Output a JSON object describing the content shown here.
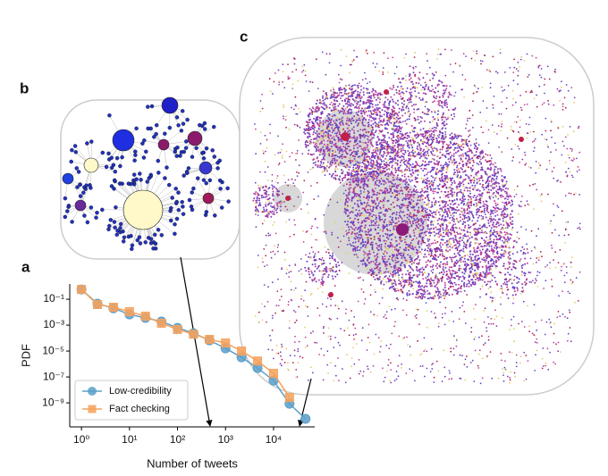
{
  "panels": [
    "a",
    "b",
    "c"
  ],
  "chart_data": {
    "type": "line",
    "xlog": true,
    "ylog": true,
    "xlabel": "Number of tweets",
    "ylabel": "PDF",
    "x": [
      1,
      2.15,
      4.64,
      10,
      21.5,
      46.4,
      100,
      215,
      464,
      1000,
      2150,
      4640,
      10000,
      21500,
      46400
    ],
    "series": [
      {
        "name": "Low-credibility",
        "color": "#5a9fc9",
        "marker": "circle",
        "values": [
          0.57,
          0.046,
          0.02,
          0.0067,
          0.0036,
          0.0019,
          0.00062,
          0.00024,
          6.7e-05,
          1.6e-05,
          3.3e-06,
          4.9e-07,
          5.3e-08,
          8.5e-10,
          5.8e-11
        ]
      },
      {
        "name": "Fact checking",
        "color": "#f5a25d",
        "marker": "square",
        "values": [
          0.57,
          0.039,
          0.024,
          0.011,
          0.0049,
          0.0014,
          0.00046,
          0.0002,
          7.9e-05,
          4.2e-05,
          1e-05,
          1.7e-06,
          1.9e-07,
          2.6e-09,
          null
        ]
      }
    ],
    "xlim": [
      0.57,
      72000
    ],
    "ylim": [
      1.4e-11,
      1.5
    ],
    "xticks": [
      {
        "value": 1,
        "label": "10⁰"
      },
      {
        "value": 10,
        "label": "10¹"
      },
      {
        "value": 100,
        "label": "10²"
      },
      {
        "value": 1000,
        "label": "10³"
      },
      {
        "value": 10000,
        "label": "10⁴"
      }
    ],
    "yticks": [
      {
        "value": 0.1,
        "label": "10⁻¹"
      },
      {
        "value": 0.001,
        "label": "10⁻³"
      },
      {
        "value": 1e-05,
        "label": "10⁻⁵"
      },
      {
        "value": 1e-07,
        "label": "10⁻⁷"
      },
      {
        "value": 1e-09,
        "label": "10⁻⁹"
      }
    ],
    "legend": "lower left",
    "grid": false
  }
}
